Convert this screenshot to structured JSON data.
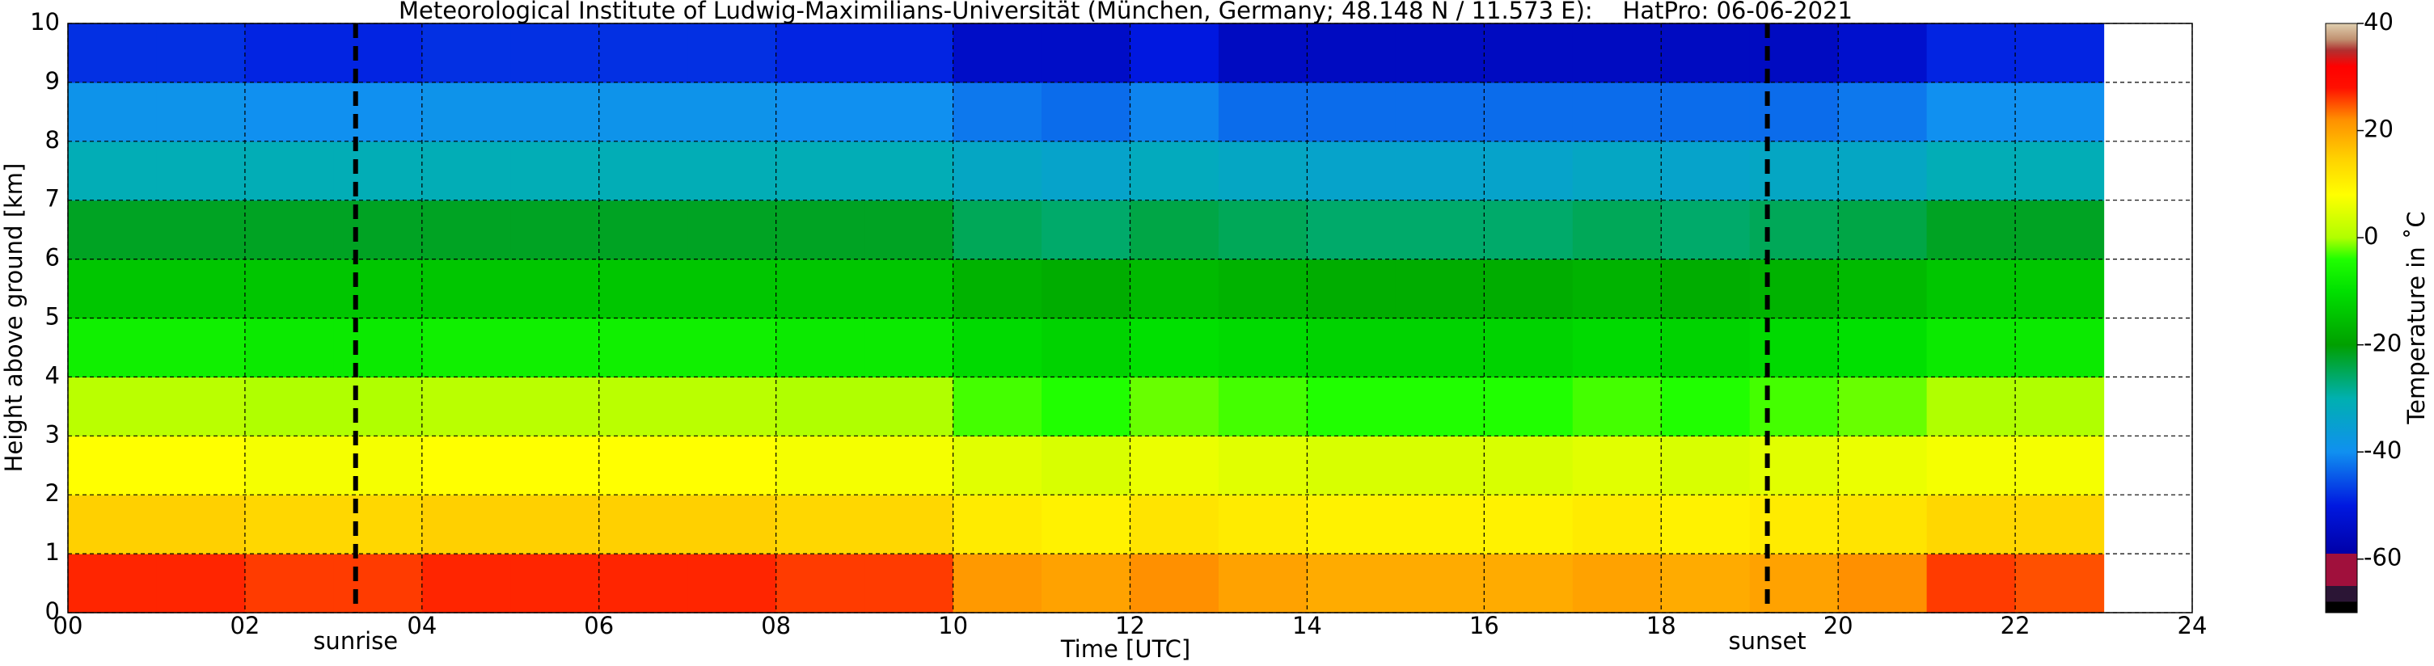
{
  "chart_data": {
    "type": "heatmap",
    "title": "Meteorological Institute of Ludwig-Maximilians-Universität (München, Germany; 48.148 N / 11.573 E):    HatPro: 06-06-2021",
    "x_label": "Time [UTC]",
    "y_label": "Height above ground [km]",
    "colorbar_label": "Temperature in ˚C",
    "x": [
      0,
      1,
      2,
      3,
      4,
      5,
      6,
      7,
      8,
      9,
      10,
      11,
      12,
      13,
      14,
      15,
      16,
      17,
      18,
      19,
      20,
      21,
      22,
      23
    ],
    "y": [
      0,
      1,
      2,
      3,
      4,
      5,
      6,
      7,
      8,
      9,
      10
    ],
    "z": [
      [
        27,
        27,
        26,
        26,
        27,
        27,
        27,
        27,
        26,
        26,
        21,
        20,
        22,
        20,
        19,
        19,
        19,
        20,
        19,
        20,
        22,
        26,
        25
      ],
      [
        15,
        15,
        14,
        14,
        15,
        15,
        15,
        15,
        14,
        14,
        11,
        10,
        12,
        11,
        10,
        10,
        10,
        11,
        10,
        11,
        12,
        14,
        14
      ],
      [
        8,
        8,
        7,
        7,
        8,
        8,
        8,
        8,
        7,
        7,
        5,
        4,
        6,
        5,
        4,
        4,
        4,
        5,
        4,
        5,
        6,
        7,
        7
      ],
      [
        1,
        1,
        0,
        0,
        1,
        1,
        1,
        1,
        0,
        0,
        -3,
        -4,
        -2,
        -3,
        -4,
        -4,
        -4,
        -3,
        -4,
        -3,
        -2,
        0,
        0
      ],
      [
        -7,
        -7,
        -8,
        -8,
        -7,
        -7,
        -7,
        -7,
        -8,
        -8,
        -11,
        -12,
        -10,
        -11,
        -12,
        -12,
        -12,
        -11,
        -12,
        -11,
        -10,
        -8,
        -8
      ],
      [
        -14,
        -14,
        -14,
        -14,
        -14,
        -14,
        -14,
        -14,
        -14,
        -14,
        -17,
        -18,
        -16,
        -17,
        -18,
        -18,
        -18,
        -17,
        -18,
        -17,
        -16,
        -14,
        -14
      ],
      [
        -22,
        -22,
        -22,
        -22,
        -22,
        -22,
        -22,
        -22,
        -22,
        -22,
        -25,
        -26,
        -24,
        -25,
        -26,
        -26,
        -26,
        -25,
        -26,
        -25,
        -24,
        -22,
        -22
      ],
      [
        -31,
        -31,
        -31,
        -31,
        -31,
        -31,
        -31,
        -31,
        -31,
        -31,
        -33,
        -34,
        -32,
        -33,
        -34,
        -34,
        -34,
        -33,
        -34,
        -33,
        -33,
        -31,
        -31
      ],
      [
        -39,
        -39,
        -40,
        -40,
        -39,
        -39,
        -39,
        -39,
        -40,
        -40,
        -42,
        -43,
        -41,
        -43,
        -43,
        -43,
        -43,
        -43,
        -43,
        -43,
        -42,
        -40,
        -40
      ],
      [
        -48,
        -48,
        -49,
        -49,
        -48,
        -48,
        -48,
        -48,
        -49,
        -49,
        -54,
        -54,
        -50,
        -55,
        -55,
        -55,
        -55,
        -55,
        -55,
        -55,
        -53,
        -49,
        -49
      ]
    ],
    "colorscale": [
      {
        "value": -70,
        "color": "#000000"
      },
      {
        "value": -68,
        "color": "#000000"
      },
      {
        "value": -68,
        "color": "#2b1535"
      },
      {
        "value": -65,
        "color": "#2b1535"
      },
      {
        "value": -65,
        "color": "#a0103c"
      },
      {
        "value": -59,
        "color": "#a0103c"
      },
      {
        "value": -59,
        "color": "#0000a8"
      },
      {
        "value": -50,
        "color": "#0018e0"
      },
      {
        "value": -40,
        "color": "#1090f0"
      },
      {
        "value": -30,
        "color": "#00b0b0"
      },
      {
        "value": -20,
        "color": "#00a000"
      },
      {
        "value": -10,
        "color": "#00e000"
      },
      {
        "value": -4,
        "color": "#20ff00"
      },
      {
        "value": 0,
        "color": "#b0ff00"
      },
      {
        "value": 8,
        "color": "#ffff00"
      },
      {
        "value": 15,
        "color": "#ffd000"
      },
      {
        "value": 22,
        "color": "#ff9000"
      },
      {
        "value": 28,
        "color": "#ff1000"
      },
      {
        "value": 32,
        "color": "#ff0000"
      },
      {
        "value": 35,
        "color": "#b03030"
      },
      {
        "value": 37,
        "color": "#c09070"
      },
      {
        "value": 40,
        "color": "#e0d0b0"
      }
    ],
    "clim": [
      -70,
      40
    ],
    "cticks": [
      -60,
      -40,
      -20,
      0,
      20,
      40
    ],
    "xlim": [
      0,
      24
    ],
    "xticks": [
      {
        "value": 0,
        "label": "00"
      },
      {
        "value": 2,
        "label": "02"
      },
      {
        "value": 4,
        "label": "04"
      },
      {
        "value": 6,
        "label": "06"
      },
      {
        "value": 8,
        "label": "08"
      },
      10,
      12,
      14,
      16,
      18,
      20,
      22,
      24
    ],
    "ylim": [
      0,
      10
    ],
    "yticks": [
      0,
      1,
      2,
      3,
      4,
      5,
      6,
      7,
      8,
      9,
      10
    ],
    "grid": true,
    "annotations": [
      {
        "x": 3.25,
        "label": "sunrise"
      },
      {
        "x": 19.2,
        "label": "sunset"
      }
    ]
  }
}
